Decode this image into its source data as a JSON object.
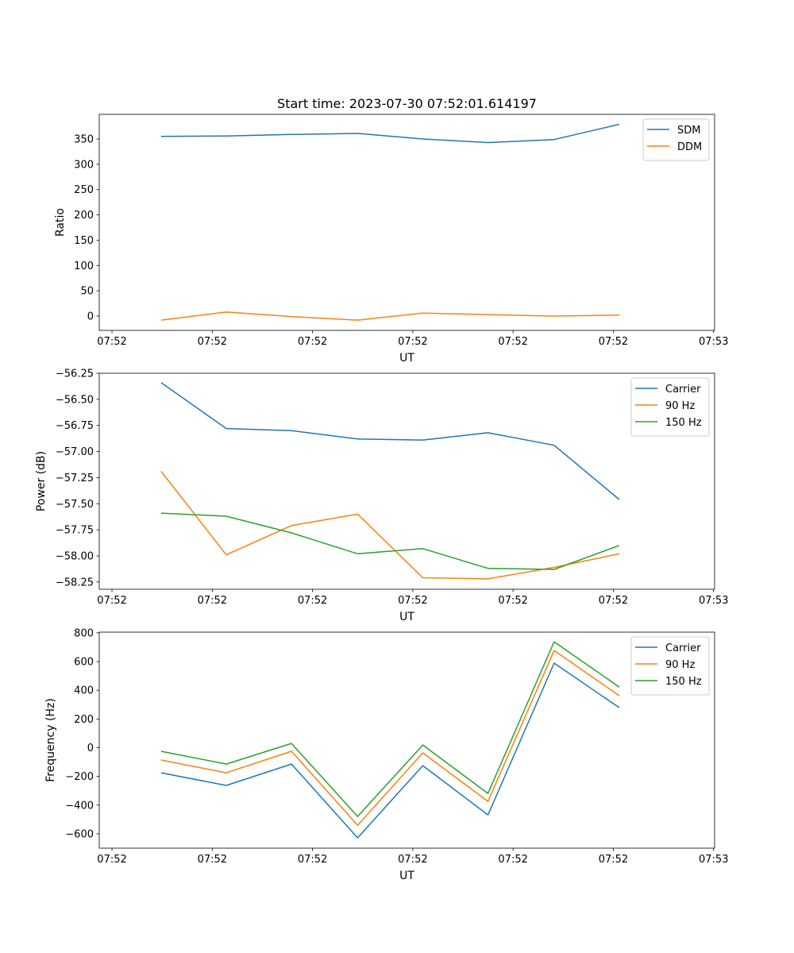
{
  "chart_data": [
    {
      "type": "line",
      "title": "Start time: 2023-07-30 07:52:01.614197",
      "xlabel": "UT",
      "ylabel": "Ratio",
      "x_unit": "seconds after 07:52:00",
      "x": [
        4.9,
        11.4,
        17.9,
        24.5,
        31.0,
        37.5,
        44.1,
        50.6
      ],
      "xlim": [
        -1.27,
        60.1
      ],
      "xticks": [
        0,
        10,
        20,
        30,
        40,
        50,
        60
      ],
      "xtick_labels": [
        "07:52",
        "07:52",
        "07:52",
        "07:52",
        "07:52",
        "07:52",
        "07:53"
      ],
      "ylim": [
        -28.3,
        398.7
      ],
      "yticks": [
        0,
        50,
        100,
        150,
        200,
        250,
        300,
        350
      ],
      "ytick_labels": [
        "0",
        "50",
        "100",
        "150",
        "200",
        "250",
        "300",
        "350"
      ],
      "legend": "top-right",
      "grid": false,
      "series": [
        {
          "name": "SDM",
          "color": "#1f77b4",
          "values": [
            355,
            356,
            359,
            361,
            350,
            343,
            349,
            379
          ]
        },
        {
          "name": "DDM",
          "color": "#ff7f0e",
          "values": [
            -8,
            8,
            -1,
            -8,
            6,
            3,
            0,
            2
          ]
        }
      ]
    },
    {
      "type": "line",
      "title": "",
      "xlabel": "UT",
      "ylabel": "Power (dB)",
      "x_unit": "seconds after 07:52:00",
      "x": [
        4.9,
        11.4,
        17.9,
        24.5,
        31.0,
        37.5,
        44.1,
        50.6
      ],
      "xlim": [
        -1.27,
        60.1
      ],
      "xticks": [
        0,
        10,
        20,
        30,
        40,
        50,
        60
      ],
      "xtick_labels": [
        "07:52",
        "07:52",
        "07:52",
        "07:52",
        "07:52",
        "07:52",
        "07:53"
      ],
      "ylim": [
        -58.32,
        -56.25
      ],
      "yticks": [
        -58.25,
        -58.0,
        -57.75,
        -57.5,
        -57.25,
        -57.0,
        -56.75,
        -56.5,
        -56.25
      ],
      "ytick_labels": [
        "−58.25",
        "−58.00",
        "−57.75",
        "−57.50",
        "−57.25",
        "−57.00",
        "−56.75",
        "−56.50",
        "−56.25"
      ],
      "legend": "top-right",
      "grid": false,
      "series": [
        {
          "name": "Carrier",
          "color": "#1f77b4",
          "values": [
            -56.34,
            -56.78,
            -56.8,
            -56.88,
            -56.89,
            -56.82,
            -56.94,
            -57.46
          ]
        },
        {
          "name": "90 Hz",
          "color": "#ff7f0e",
          "values": [
            -57.19,
            -57.99,
            -57.71,
            -57.6,
            -58.21,
            -58.22,
            -58.11,
            -57.98
          ]
        },
        {
          "name": "150 Hz",
          "color": "#2ca02c",
          "values": [
            -57.59,
            -57.62,
            -57.78,
            -57.98,
            -57.93,
            -58.12,
            -58.13,
            -57.9
          ]
        }
      ]
    },
    {
      "type": "line",
      "title": "",
      "xlabel": "UT",
      "ylabel": "Frequency (Hz)",
      "x_unit": "seconds after 07:52:00",
      "x": [
        4.9,
        11.4,
        17.9,
        24.5,
        31.0,
        37.5,
        44.1,
        50.6
      ],
      "xlim": [
        -1.27,
        60.1
      ],
      "xticks": [
        0,
        10,
        20,
        30,
        40,
        50,
        60
      ],
      "xtick_labels": [
        "07:52",
        "07:52",
        "07:52",
        "07:52",
        "07:52",
        "07:52",
        "07:53"
      ],
      "ylim": [
        -700,
        805
      ],
      "yticks": [
        -600,
        -400,
        -200,
        0,
        200,
        400,
        600,
        800
      ],
      "ytick_labels": [
        "−600",
        "−400",
        "−200",
        "0",
        "200",
        "400",
        "600",
        "800"
      ],
      "legend": "top-right",
      "grid": false,
      "series": [
        {
          "name": "Carrier",
          "color": "#1f77b4",
          "values": [
            -175,
            -263,
            -114,
            -628,
            -125,
            -468,
            589,
            279
          ]
        },
        {
          "name": "90 Hz",
          "color": "#ff7f0e",
          "values": [
            -86,
            -175,
            -25,
            -540,
            -36,
            -374,
            677,
            362
          ]
        },
        {
          "name": "150 Hz",
          "color": "#2ca02c",
          "values": [
            -25,
            -114,
            30,
            -479,
            19,
            -319,
            738,
            422
          ]
        }
      ]
    }
  ]
}
